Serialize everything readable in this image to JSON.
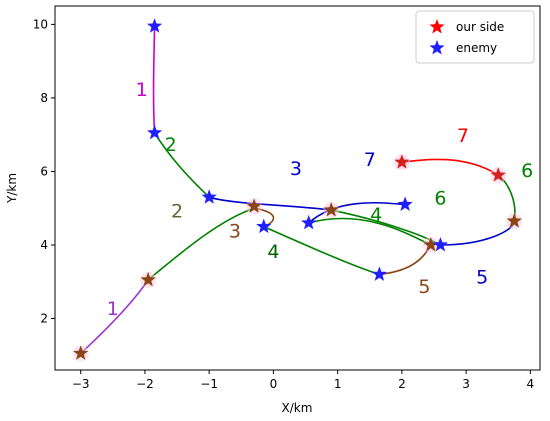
{
  "chart_data": {
    "type": "line",
    "xlabel": "X/km",
    "ylabel": "Y/km",
    "xlim": [
      -3.4,
      4.15
    ],
    "ylim": [
      0.6,
      10.5
    ],
    "xticks": [
      -3,
      -2,
      -1,
      0,
      1,
      2,
      3,
      4
    ],
    "yticks": [
      2,
      4,
      6,
      8,
      10
    ],
    "grid": false,
    "legend_position": "top-right",
    "legend": [
      {
        "name": "our side",
        "color": "#ff0000",
        "marker": "star"
      },
      {
        "name": "enemy",
        "color": "#1f1fff",
        "marker": "star"
      }
    ],
    "segments": [
      {
        "label": "1",
        "color": "#cc00cc",
        "points": [
          [
            -1.85,
            9.95
          ],
          [
            -1.86,
            9.0
          ],
          [
            -1.88,
            8.0
          ],
          [
            -1.85,
            7.05
          ]
        ]
      },
      {
        "label": "2",
        "color": "#008000",
        "points": [
          [
            -1.85,
            7.05
          ],
          [
            -1.6,
            6.35
          ],
          [
            -1.3,
            5.8
          ],
          [
            -1.0,
            5.3
          ]
        ]
      },
      {
        "label": "3",
        "color": "#0000cc",
        "points": [
          [
            -1.0,
            5.3
          ],
          [
            -0.6,
            5.1
          ],
          [
            0.2,
            5.1
          ],
          [
            0.9,
            4.95
          ]
        ]
      },
      {
        "label": "4",
        "color": "#008000",
        "points": [
          [
            0.9,
            4.95
          ],
          [
            1.6,
            4.7
          ],
          [
            2.3,
            4.3
          ],
          [
            2.6,
            4.0
          ]
        ]
      },
      {
        "label": "5",
        "color": "#0000cc",
        "points": [
          [
            2.6,
            4.0
          ],
          [
            3.3,
            4.0
          ],
          [
            3.75,
            4.4
          ],
          [
            3.75,
            4.65
          ]
        ]
      },
      {
        "label": "6",
        "color": "#008000",
        "points": [
          [
            3.75,
            4.65
          ],
          [
            3.8,
            5.2
          ],
          [
            3.65,
            5.7
          ],
          [
            3.5,
            5.9
          ]
        ]
      },
      {
        "label": "7",
        "color": "#ff0000",
        "points": [
          [
            3.5,
            5.9
          ],
          [
            3.0,
            6.45
          ],
          [
            2.4,
            6.35
          ],
          [
            2.0,
            6.25
          ]
        ]
      },
      {
        "label": "1",
        "color": "#9933cc",
        "points": [
          [
            -3.0,
            1.05
          ],
          [
            -2.6,
            1.7
          ],
          [
            -2.2,
            2.4
          ],
          [
            -1.95,
            3.05
          ]
        ]
      },
      {
        "label": "2",
        "color": "#008000",
        "points": [
          [
            -1.95,
            3.05
          ],
          [
            -1.3,
            4.0
          ],
          [
            -0.8,
            4.7
          ],
          [
            -0.3,
            5.0
          ]
        ]
      },
      {
        "label": "3",
        "color": "#8b4513",
        "points": [
          [
            -0.3,
            5.0
          ],
          [
            0.2,
            4.85
          ],
          [
            -0.05,
            4.55
          ],
          [
            -0.15,
            4.5
          ]
        ]
      },
      {
        "label": "4",
        "color": "#008000",
        "points": [
          [
            -0.15,
            4.5
          ],
          [
            0.5,
            4.0
          ],
          [
            1.2,
            3.45
          ],
          [
            1.65,
            3.2
          ]
        ]
      },
      {
        "label": "5",
        "color": "#8b4513",
        "points": [
          [
            1.65,
            3.2
          ],
          [
            2.2,
            3.3
          ],
          [
            2.35,
            3.7
          ],
          [
            2.45,
            4.0
          ]
        ]
      },
      {
        "label": "6",
        "color": "#008000",
        "points": [
          [
            2.45,
            4.0
          ],
          [
            2.1,
            4.3
          ],
          [
            1.4,
            5.0
          ],
          [
            0.55,
            4.6
          ]
        ]
      },
      {
        "label": "7",
        "color": "#0000cc",
        "points": [
          [
            0.55,
            4.6
          ],
          [
            1.0,
            5.3
          ],
          [
            1.7,
            5.15
          ],
          [
            2.05,
            5.1
          ]
        ]
      }
    ],
    "our_side_points": [
      [
        -3.0,
        1.05
      ],
      [
        -1.95,
        3.05
      ],
      [
        -0.3,
        5.05
      ],
      [
        0.9,
        4.95
      ],
      [
        2.45,
        4.0
      ],
      [
        3.75,
        4.65
      ],
      [
        3.5,
        5.9
      ],
      [
        2.0,
        6.25
      ]
    ],
    "enemy_points": [
      [
        -1.85,
        9.95
      ],
      [
        -1.85,
        7.05
      ],
      [
        -1.0,
        5.3
      ],
      [
        -0.15,
        4.5
      ],
      [
        0.55,
        4.6
      ],
      [
        1.65,
        3.2
      ],
      [
        2.6,
        4.0
      ],
      [
        2.05,
        5.1
      ]
    ],
    "labels": [
      {
        "text": "1",
        "x": -2.05,
        "y": 8.2,
        "color": "#cc00cc"
      },
      {
        "text": "2",
        "x": -1.6,
        "y": 6.7,
        "color": "#008000"
      },
      {
        "text": "3",
        "x": 0.35,
        "y": 6.05,
        "color": "#0000cc"
      },
      {
        "text": "4",
        "x": 1.6,
        "y": 4.8,
        "color": "#008000"
      },
      {
        "text": "5",
        "x": 3.25,
        "y": 3.1,
        "color": "#0000cc"
      },
      {
        "text": "6",
        "x": 3.95,
        "y": 6.0,
        "color": "#008000"
      },
      {
        "text": "7",
        "x": 2.95,
        "y": 6.95,
        "color": "#ff0000"
      },
      {
        "text": "7",
        "x": 1.5,
        "y": 6.3,
        "color": "#0000cc"
      },
      {
        "text": "6",
        "x": 2.6,
        "y": 5.25,
        "color": "#008000"
      },
      {
        "text": "5",
        "x": 2.35,
        "y": 2.85,
        "color": "#8b4513"
      },
      {
        "text": "4",
        "x": 0.0,
        "y": 3.8,
        "color": "#006400"
      },
      {
        "text": "3",
        "x": -0.6,
        "y": 4.35,
        "color": "#8b4513"
      },
      {
        "text": "2",
        "x": -1.5,
        "y": 4.9,
        "color": "#556b2f"
      },
      {
        "text": "1",
        "x": -2.5,
        "y": 2.25,
        "color": "#9933cc"
      }
    ]
  }
}
